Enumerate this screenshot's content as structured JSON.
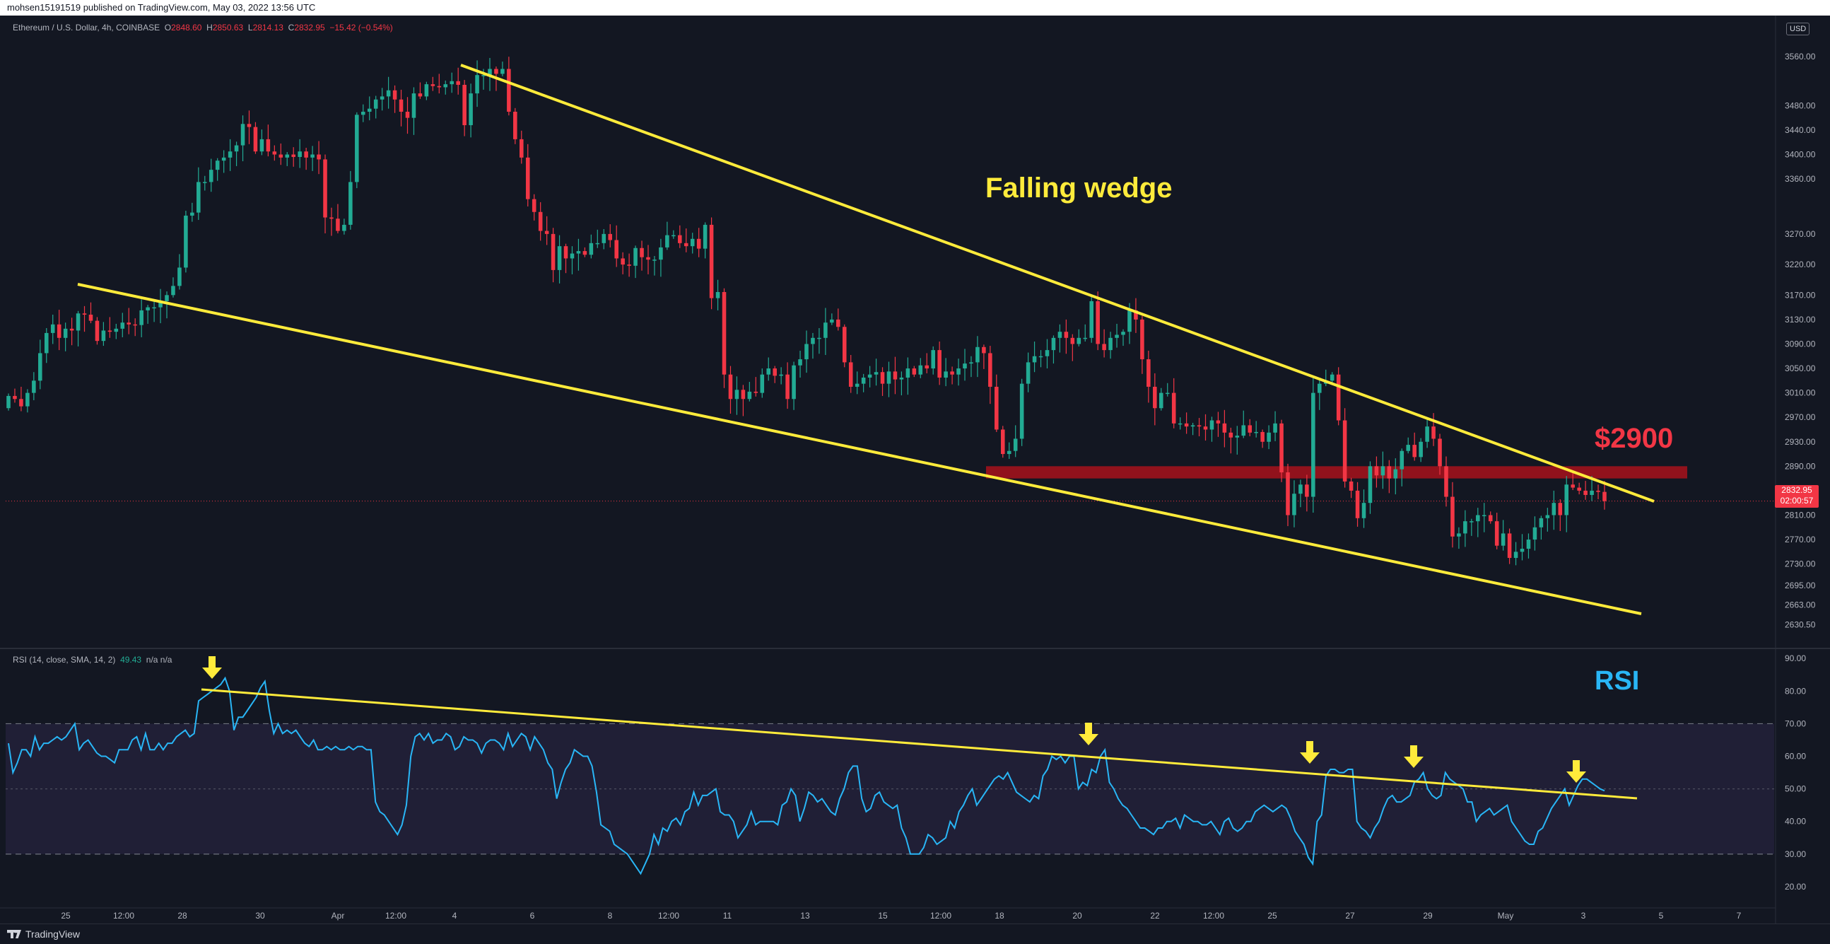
{
  "publisher_line": "mohsen15191519 published on TradingView.com, May 03, 2022 13:56 UTC",
  "header": {
    "symbol": "Ethereum / U.S. Dollar, 4h, COINBASE",
    "o_label": "O",
    "o": "2848.60",
    "h_label": "H",
    "h": "2850.63",
    "l_label": "L",
    "l": "2814.13",
    "c_label": "C",
    "c": "2832.95",
    "change": "−15.42 (−0.54%)"
  },
  "currency": "USD",
  "price_tag": {
    "price": "2832.95",
    "countdown": "02:00:57"
  },
  "rsi_header": {
    "label": "RSI (14, close, SMA, 14, 2)",
    "value": "49.43",
    "extra": "n/a n/a"
  },
  "annotations": {
    "wedge": "Falling wedge",
    "resistance": "$2900",
    "rsi": "RSI"
  },
  "footer": {
    "brand": "TradingView"
  },
  "colors": {
    "up": "#22ab94",
    "down": "#f23645",
    "trend": "#ffeb3b",
    "rsi_line": "#29b6f6",
    "resistance_band": "#b2121c",
    "background": "#131722"
  },
  "chart_data": [
    {
      "type": "candlestick",
      "title": "Ethereum / U.S. Dollar, 4h, COINBASE",
      "ylim": [
        2600,
        3610
      ],
      "yticks": [
        3560,
        3480,
        3440,
        3400,
        3360,
        3270,
        3220,
        3170,
        3130,
        3090,
        3050,
        3010,
        2970,
        2930,
        2890,
        2850,
        2810,
        2770,
        2730,
        2695,
        2663,
        2630.5
      ],
      "xticks": [
        "25",
        "12:00",
        "28",
        "30",
        "Apr",
        "12:00",
        "4",
        "6",
        "8",
        "12:00",
        "11",
        "13",
        "15",
        "12:00",
        "18",
        "20",
        "22",
        "12:00",
        "25",
        "27",
        "29",
        "May",
        "3",
        "5",
        "7"
      ],
      "close": [
        3005,
        3000,
        2988,
        3010,
        3030,
        3075,
        3108,
        3122,
        3100,
        3115,
        3112,
        3140,
        3138,
        3128,
        3095,
        3112,
        3110,
        3115,
        3125,
        3122,
        3121,
        3145,
        3150,
        3150,
        3160,
        3170,
        3185,
        3215,
        3300,
        3305,
        3355,
        3355,
        3375,
        3390,
        3395,
        3405,
        3415,
        3450,
        3445,
        3405,
        3425,
        3405,
        3400,
        3395,
        3400,
        3396,
        3405,
        3395,
        3400,
        3392,
        3297,
        3295,
        3275,
        3285,
        3355,
        3465,
        3470,
        3475,
        3490,
        3495,
        3505,
        3490,
        3470,
        3460,
        3500,
        3495,
        3515,
        3512,
        3510,
        3515,
        3520,
        3514,
        3448,
        3500,
        3530,
        3530,
        3540,
        3532,
        3540,
        3470,
        3425,
        3395,
        3327,
        3306,
        3275,
        3270,
        3211,
        3250,
        3230,
        3238,
        3242,
        3236,
        3255,
        3255,
        3270,
        3260,
        3230,
        3220,
        3218,
        3247,
        3232,
        3228,
        3228,
        3248,
        3268,
        3268,
        3255,
        3250,
        3262,
        3246,
        3285,
        3165,
        3175,
        3040,
        3000,
        3015,
        3000,
        3012,
        3010,
        3040,
        3050,
        3038,
        3040,
        3000,
        3055,
        3065,
        3090,
        3100,
        3100,
        3125,
        3130,
        3118,
        3060,
        3020,
        3025,
        3035,
        3040,
        3044,
        3025,
        3045,
        3032,
        3035,
        3050,
        3040,
        3055,
        3050,
        3080,
        3035,
        3045,
        3040,
        3050,
        3058,
        3060,
        3085,
        3075,
        3020,
        2950,
        2910,
        2915,
        2935,
        3025,
        3060,
        3070,
        3070,
        3080,
        3100,
        3110,
        3100,
        3090,
        3100,
        3100,
        3160,
        3090,
        3080,
        3100,
        3105,
        3110,
        3145,
        3130,
        3065,
        3020,
        2985,
        3010,
        3010,
        2960,
        2960,
        2955,
        2957,
        2955,
        2950,
        2965,
        2960,
        2945,
        2937,
        2940,
        2957,
        2945,
        2946,
        2930,
        2945,
        2960,
        2880,
        2810,
        2845,
        2860,
        2840,
        3010,
        3025,
        3030,
        3040,
        2965,
        2865,
        2850,
        2805,
        2830,
        2890,
        2875,
        2890,
        2870,
        2885,
        2915,
        2925,
        2905,
        2930,
        2955,
        2935,
        2890,
        2840,
        2775,
        2780,
        2800,
        2800,
        2810,
        2810,
        2800,
        2760,
        2780,
        2740,
        2750,
        2755,
        2770,
        2790,
        2805,
        2810,
        2830,
        2810,
        2860,
        2855,
        2850,
        2843,
        2850,
        2848,
        2832.95
      ]
    },
    {
      "type": "line",
      "title": "RSI (14, close, SMA, 14, 2)",
      "ylim": [
        15,
        92
      ],
      "yticks": [
        90,
        80,
        70,
        60,
        50,
        40,
        30,
        20
      ],
      "bands": [
        30,
        50,
        70
      ],
      "series": [
        {
          "values": [
            64,
            55,
            58,
            62,
            62,
            60,
            66,
            62,
            64,
            64,
            65,
            66,
            65,
            66,
            68,
            70,
            62,
            64,
            65,
            63,
            61,
            60,
            60,
            59,
            58,
            62,
            62,
            62,
            65,
            66,
            62,
            67,
            62,
            62,
            64,
            62,
            64,
            64,
            66,
            67,
            68,
            66,
            67,
            77,
            78,
            79,
            80,
            81,
            82,
            84,
            80,
            68,
            72,
            72,
            74,
            76,
            78,
            81,
            83,
            74,
            67,
            70,
            67,
            68,
            67,
            68,
            66,
            64,
            63,
            65,
            62,
            62,
            63,
            62,
            63,
            62,
            62,
            63,
            62,
            63,
            63,
            62,
            62,
            46,
            43,
            42,
            40,
            38,
            36,
            39,
            45,
            60,
            66,
            67,
            65,
            67,
            64,
            65,
            65,
            67,
            66,
            62,
            63,
            66,
            65,
            65,
            64,
            61,
            64,
            65,
            65,
            64,
            62,
            67,
            63,
            65,
            67,
            66,
            62,
            66,
            64,
            62,
            58,
            56,
            47,
            52,
            56,
            58,
            62,
            61,
            60,
            60,
            57,
            49,
            39,
            38,
            37,
            33,
            32,
            31,
            30,
            28,
            26,
            24,
            27,
            30,
            36,
            33,
            38,
            37,
            40,
            41,
            39,
            43,
            44,
            49,
            45,
            48,
            48,
            49,
            50,
            43,
            42,
            42,
            40,
            35,
            37,
            39,
            43,
            39,
            40,
            40,
            40,
            40,
            39,
            45,
            46,
            50,
            48,
            40,
            44,
            49,
            48,
            46,
            47,
            45,
            43,
            42,
            47,
            50,
            55,
            57,
            57,
            47,
            43,
            44,
            48,
            49,
            46,
            45,
            44,
            45,
            38,
            35,
            30,
            30,
            30,
            32,
            36,
            35,
            33,
            34,
            35,
            40,
            38,
            43,
            45,
            48,
            50,
            45,
            47,
            49,
            51,
            53,
            54,
            53,
            55,
            52,
            49,
            48,
            47,
            46,
            48,
            47,
            54,
            56,
            60,
            59,
            60,
            58,
            60,
            60,
            50,
            52,
            51,
            56,
            55,
            60,
            62,
            52,
            50,
            47,
            45,
            44,
            42,
            40,
            38,
            38,
            37,
            36,
            38,
            38,
            40,
            40,
            41,
            38,
            42,
            41,
            40,
            40,
            39,
            39,
            40,
            38,
            36,
            40,
            41,
            38,
            37,
            38,
            40,
            40,
            43,
            44,
            45,
            44,
            43,
            44,
            45,
            44,
            41,
            37,
            35,
            33,
            29,
            27,
            40,
            42,
            54,
            56,
            56,
            55,
            55,
            56,
            56,
            40,
            38,
            37,
            35,
            38,
            40,
            44,
            47,
            48,
            46,
            46,
            47,
            48,
            52,
            53,
            55,
            50,
            48,
            47,
            48,
            55,
            53,
            52,
            51,
            50,
            46,
            46,
            40,
            42,
            43,
            44,
            42,
            43,
            44,
            45,
            40,
            38,
            36,
            34,
            33,
            33,
            37,
            38,
            41,
            44,
            46,
            48,
            50,
            45,
            48,
            51,
            53,
            53,
            52,
            51,
            50,
            49.43
          ]
        }
      ]
    }
  ]
}
